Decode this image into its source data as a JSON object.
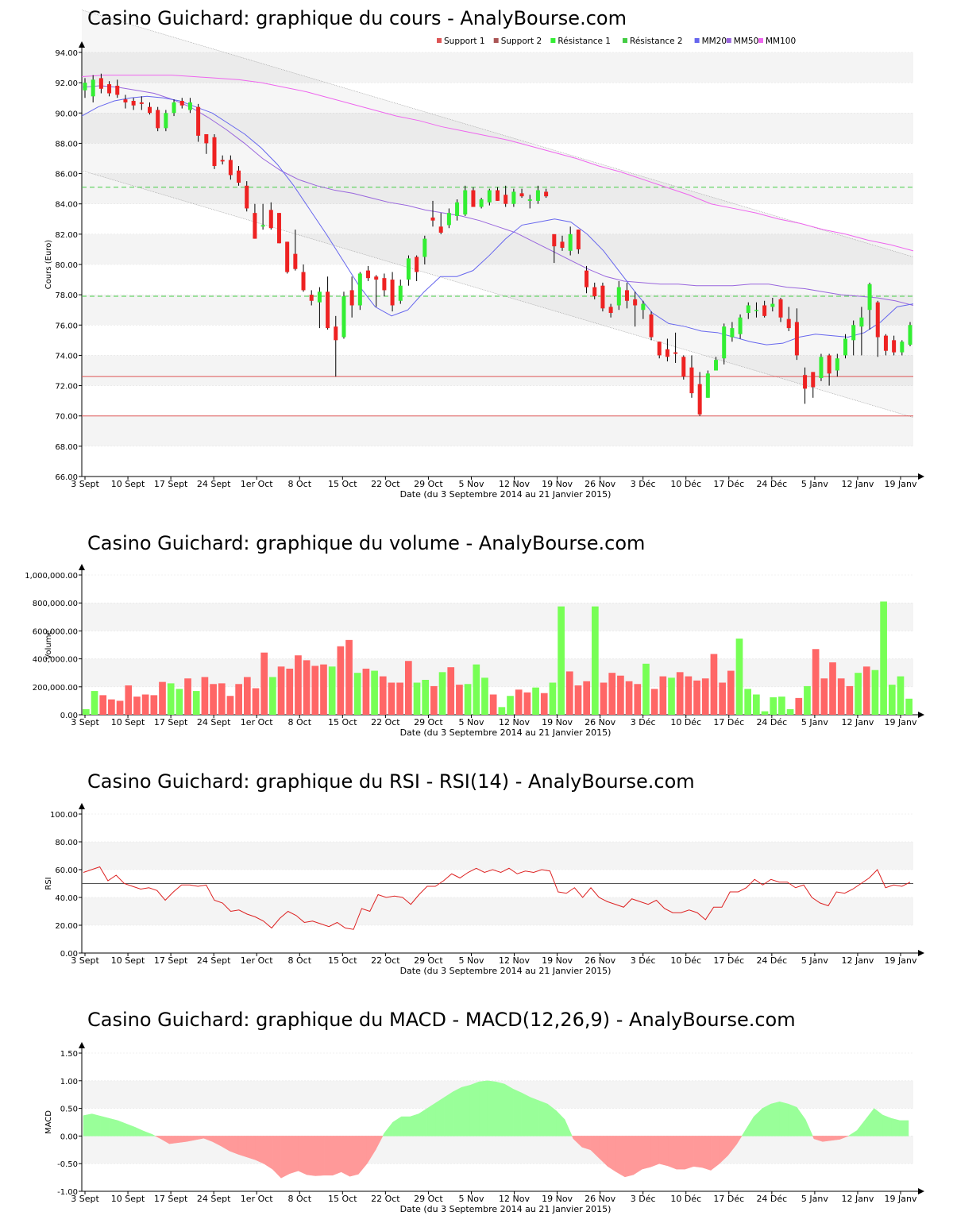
{
  "colors": {
    "up": "#33ee33",
    "down": "#ee2222",
    "up_volume": "#77ff55",
    "down_volume": "#ff6666",
    "mm20": "#6666ee",
    "mm50": "#9966dd",
    "mm100": "#ee66ee",
    "support": "#dd5555",
    "resistance": "#44cc44",
    "macd_pos": "#99ff99",
    "macd_neg": "#ff9999",
    "rsi": "#dd2222",
    "band": "#f4f4f4",
    "grid": "#bbbbbb"
  },
  "x_axis": {
    "labels": [
      "3 Sept",
      "10 Sept",
      "17 Sept",
      "24 Sept",
      "1er Oct",
      "8 Oct",
      "15 Oct",
      "22 Oct",
      "29 Oct",
      "5 Nov",
      "12 Nov",
      "19 Nov",
      "26 Nov",
      "3 Déc",
      "10 Déc",
      "17 Déc",
      "24 Déc",
      "5 Janv",
      "12 Janv",
      "19 Janv"
    ],
    "caption": "Date (du 3 Septembre 2014 au 21 Janvier 2015)"
  },
  "chart_data": [
    {
      "type": "candlestick",
      "title": "Casino Guichard: graphique du cours - AnalyBourse.com",
      "ylabel": "Cours (Euro)",
      "ylim": [
        66,
        94
      ],
      "yticks": [
        "66.00",
        "68.00",
        "70.00",
        "72.00",
        "74.00",
        "76.00",
        "78.00",
        "80.00",
        "82.00",
        "84.00",
        "86.00",
        "88.00",
        "90.00",
        "92.00",
        "94.00"
      ],
      "legend": [
        "Support 1",
        "Support 2",
        "Résistance 1",
        "Résistance 2",
        "MM20",
        "MM50",
        "MM100"
      ],
      "legend_placement": "top-right",
      "support": [
        72.6,
        70.0
      ],
      "resistance": [
        85.1,
        77.9
      ],
      "candles": [
        [
          91.5,
          92.3,
          91.0,
          92.0
        ],
        [
          91.1,
          92.5,
          90.7,
          92.2
        ],
        [
          92.3,
          92.6,
          91.3,
          91.6
        ],
        [
          91.9,
          92.1,
          91.1,
          91.3
        ],
        [
          91.8,
          92.2,
          91.0,
          91.2
        ],
        [
          90.9,
          91.2,
          90.3,
          90.7
        ],
        [
          90.8,
          91.0,
          90.2,
          90.5
        ],
        [
          90.7,
          91.1,
          90.2,
          90.6
        ],
        [
          90.4,
          90.7,
          89.9,
          90.0
        ],
        [
          90.2,
          90.4,
          88.8,
          89.0
        ],
        [
          89.0,
          90.2,
          88.8,
          90.0
        ],
        [
          90.0,
          90.9,
          89.8,
          90.7
        ],
        [
          90.8,
          91.0,
          90.3,
          90.5
        ],
        [
          90.2,
          91.0,
          90.0,
          90.7
        ],
        [
          90.4,
          90.6,
          88.1,
          88.5
        ],
        [
          88.6,
          88.6,
          87.3,
          88.0
        ],
        [
          88.4,
          88.6,
          86.3,
          86.5
        ],
        [
          86.9,
          87.2,
          86.6,
          86.8
        ],
        [
          86.9,
          87.2,
          85.6,
          85.9
        ],
        [
          86.2,
          86.5,
          85.2,
          85.4
        ],
        [
          85.2,
          85.5,
          83.5,
          83.7
        ],
        [
          83.4,
          84.0,
          81.7,
          81.7
        ],
        [
          82.5,
          84.0,
          82.3,
          82.6
        ],
        [
          83.6,
          84.1,
          82.3,
          82.4
        ],
        [
          83.4,
          83.4,
          81.4,
          81.4
        ],
        [
          81.5,
          81.5,
          79.4,
          79.5
        ],
        [
          80.7,
          82.3,
          79.6,
          79.7
        ],
        [
          79.5,
          80.0,
          78.2,
          78.3
        ],
        [
          78.0,
          78.3,
          77.3,
          77.6
        ],
        [
          77.5,
          78.5,
          75.8,
          78.2
        ],
        [
          78.2,
          79.2,
          75.7,
          75.8
        ],
        [
          75.9,
          76.6,
          72.6,
          75.0
        ],
        [
          75.2,
          78.2,
          75.1,
          77.9
        ],
        [
          78.3,
          79.2,
          76.5,
          77.3
        ],
        [
          77.3,
          79.5,
          77.0,
          79.4
        ],
        [
          79.6,
          79.9,
          78.9,
          79.1
        ],
        [
          79.2,
          79.3,
          77.2,
          79.0
        ],
        [
          79.1,
          79.4,
          77.9,
          78.3
        ],
        [
          79.0,
          79.5,
          76.9,
          77.3
        ],
        [
          77.6,
          79.0,
          77.4,
          78.6
        ],
        [
          79.0,
          80.6,
          78.6,
          80.4
        ],
        [
          80.5,
          80.6,
          78.9,
          79.5
        ],
        [
          80.5,
          81.9,
          80.0,
          81.7
        ],
        [
          83.1,
          84.2,
          82.5,
          82.9
        ],
        [
          82.5,
          83.4,
          82.0,
          82.1
        ],
        [
          82.6,
          83.7,
          82.4,
          83.4
        ],
        [
          83.2,
          84.3,
          82.9,
          84.1
        ],
        [
          83.3,
          85.2,
          83.2,
          84.9
        ],
        [
          84.9,
          85.1,
          83.8,
          83.8
        ],
        [
          83.8,
          84.4,
          83.7,
          84.3
        ],
        [
          84.1,
          85.0,
          83.9,
          84.9
        ],
        [
          84.9,
          85.1,
          84.2,
          84.2
        ],
        [
          84.6,
          85.2,
          83.8,
          84.0
        ],
        [
          84.0,
          85.0,
          83.8,
          84.8
        ],
        [
          84.7,
          85.0,
          84.4,
          84.5
        ],
        [
          84.2,
          84.6,
          83.7,
          84.3
        ],
        [
          84.2,
          85.2,
          84.0,
          84.9
        ],
        [
          84.8,
          85.0,
          84.4,
          84.5
        ],
        [
          82.0,
          82.0,
          80.1,
          81.2
        ],
        [
          81.5,
          81.9,
          80.9,
          81.1
        ],
        [
          80.9,
          82.5,
          80.6,
          82.0
        ],
        [
          82.3,
          82.3,
          80.7,
          81.0
        ],
        [
          79.6,
          79.9,
          78.1,
          78.5
        ],
        [
          78.5,
          78.8,
          77.7,
          77.9
        ],
        [
          78.6,
          78.8,
          76.9,
          77.1
        ],
        [
          77.2,
          77.4,
          76.5,
          76.8
        ],
        [
          77.3,
          78.9,
          77.0,
          78.5
        ],
        [
          78.3,
          78.8,
          77.1,
          77.6
        ],
        [
          77.7,
          78.2,
          75.9,
          77.3
        ],
        [
          77.0,
          77.6,
          76.4,
          77.4
        ],
        [
          76.7,
          76.9,
          75.0,
          75.2
        ],
        [
          74.9,
          74.9,
          73.8,
          74.0
        ],
        [
          74.4,
          75.1,
          73.6,
          73.9
        ],
        [
          74.2,
          75.5,
          73.5,
          74.1
        ],
        [
          73.9,
          74.0,
          72.4,
          72.6
        ],
        [
          73.2,
          74.0,
          71.2,
          71.5
        ],
        [
          72.1,
          72.9,
          70.0,
          70.1
        ],
        [
          71.2,
          73.0,
          71.2,
          72.8
        ],
        [
          73.0,
          73.9,
          73.0,
          73.7
        ],
        [
          73.8,
          76.1,
          73.4,
          75.9
        ],
        [
          75.2,
          76.2,
          74.9,
          75.8
        ],
        [
          75.4,
          76.7,
          75.1,
          76.5
        ],
        [
          76.8,
          77.5,
          76.4,
          77.3
        ],
        [
          77.0,
          77.5,
          76.5,
          77.0
        ],
        [
          77.3,
          77.6,
          76.5,
          76.6
        ],
        [
          77.2,
          77.8,
          76.9,
          77.4
        ],
        [
          77.7,
          77.8,
          76.2,
          76.5
        ],
        [
          76.4,
          77.2,
          75.6,
          75.8
        ],
        [
          76.2,
          77.1,
          73.7,
          74.0
        ],
        [
          72.7,
          73.2,
          70.8,
          71.8
        ],
        [
          72.9,
          72.9,
          71.2,
          71.9
        ],
        [
          72.5,
          74.1,
          72.3,
          73.9
        ],
        [
          74.0,
          74.1,
          72.0,
          72.8
        ],
        [
          73.0,
          74.1,
          72.6,
          73.8
        ],
        [
          74.0,
          75.4,
          73.8,
          75.1
        ],
        [
          75.0,
          76.3,
          74.0,
          76.0
        ],
        [
          75.9,
          77.2,
          74.0,
          76.5
        ],
        [
          77.0,
          78.8,
          75.7,
          78.7
        ],
        [
          77.5,
          77.6,
          73.9,
          75.2
        ],
        [
          75.3,
          75.4,
          74.0,
          74.3
        ],
        [
          75.0,
          75.3,
          74.0,
          74.2
        ],
        [
          74.2,
          75.0,
          74.0,
          74.9
        ],
        [
          74.7,
          76.2,
          74.6,
          76.0
        ]
      ],
      "mm20": [
        89.8,
        90.4,
        90.8,
        91.0,
        91.1,
        91.0,
        90.8,
        90.4,
        90.0,
        89.3,
        88.6,
        87.7,
        86.6,
        85.2,
        83.6,
        82.0,
        80.3,
        78.6,
        77.2,
        76.6,
        77.0,
        78.2,
        79.2,
        79.2,
        79.6,
        80.6,
        81.7,
        82.6,
        82.8,
        83.0,
        82.8,
        82.0,
        80.9,
        79.5,
        78.1,
        76.8,
        76.1,
        75.9,
        75.6,
        75.5,
        75.2,
        74.9,
        74.7,
        74.8,
        75.2,
        75.4,
        75.3,
        75.2,
        75.5,
        76.2,
        77.2,
        77.4
      ],
      "mm50": [
        91.7,
        91.8,
        91.7,
        91.5,
        91.3,
        90.9,
        90.4,
        89.7,
        88.9,
        88.0,
        87.0,
        86.2,
        85.6,
        85.2,
        84.9,
        84.7,
        84.4,
        84.1,
        83.9,
        83.6,
        83.4,
        83.2,
        82.9,
        82.5,
        82.1,
        81.5,
        80.9,
        80.3,
        79.7,
        79.2,
        78.9,
        78.8,
        78.7,
        78.7,
        78.6,
        78.6,
        78.6,
        78.7,
        78.7,
        78.5,
        78.4,
        78.2,
        78.0,
        77.9,
        77.8,
        77.6,
        77.3
      ],
      "mm100": [
        92.4,
        92.5,
        92.5,
        92.5,
        92.5,
        92.4,
        92.3,
        92.2,
        92.0,
        91.7,
        91.4,
        91.0,
        90.6,
        90.2,
        89.8,
        89.5,
        89.1,
        88.8,
        88.5,
        88.2,
        87.8,
        87.4,
        87.0,
        86.5,
        86.1,
        85.6,
        85.1,
        84.6,
        84.0,
        83.7,
        83.4,
        83.0,
        82.7,
        82.3,
        82.0,
        81.6,
        81.3,
        80.9
      ]
    },
    {
      "type": "bar",
      "title": "Casino Guichard: graphique du volume - AnalyBourse.com",
      "ylabel": "Volume",
      "ylim": [
        0,
        1000000
      ],
      "yticks": [
        "0.00",
        "200,000.00",
        "400,000.00",
        "600,000.00",
        "800,000.00",
        "1,000,000.00"
      ],
      "values": [
        40000,
        170000,
        140000,
        110000,
        100000,
        210000,
        130000,
        145000,
        140000,
        235000,
        225000,
        185000,
        260000,
        170000,
        270000,
        220000,
        225000,
        135000,
        220000,
        270000,
        190000,
        445000,
        270000,
        345000,
        330000,
        425000,
        390000,
        350000,
        360000,
        345000,
        490000,
        535000,
        300000,
        330000,
        315000,
        275000,
        230000,
        230000,
        385000,
        230000,
        250000,
        205000,
        305000,
        340000,
        215000,
        220000,
        360000,
        265000,
        145000,
        55000,
        135000,
        180000,
        160000,
        195000,
        155000,
        230000,
        775000,
        310000,
        210000,
        240000,
        775000,
        230000,
        300000,
        280000,
        240000,
        220000,
        365000,
        185000,
        275000,
        265000,
        305000,
        275000,
        245000,
        260000,
        435000,
        230000,
        315000,
        545000,
        185000,
        145000,
        25000,
        125000,
        130000,
        40000,
        120000,
        205000,
        470000,
        260000,
        375000,
        260000,
        205000,
        300000,
        345000,
        320000,
        810000,
        215000,
        275000,
        115000
      ]
    },
    {
      "type": "line",
      "title": "Casino Guichard: graphique du RSI - RSI(14) - AnalyBourse.com",
      "ylabel": "RSI",
      "ylim": [
        0,
        100
      ],
      "yticks": [
        "0.00",
        "20.00",
        "40.00",
        "60.00",
        "80.00",
        "100.00"
      ],
      "reference_line": 50,
      "values": [
        58,
        60,
        62,
        52,
        56,
        50,
        48,
        46,
        47,
        45,
        38,
        44,
        49,
        49,
        48,
        49,
        38,
        36,
        30,
        31,
        28,
        26,
        23,
        18,
        25,
        30,
        27,
        22,
        23,
        21,
        19,
        22,
        18,
        17,
        32,
        30,
        42,
        40,
        41,
        40,
        35,
        42,
        48,
        48,
        52,
        57,
        54,
        58,
        61,
        58,
        60,
        58,
        61,
        57,
        59,
        58,
        60,
        59,
        44,
        43,
        47,
        40,
        47,
        40,
        37,
        35,
        33,
        39,
        37,
        35,
        38,
        32,
        29,
        29,
        31,
        29,
        24,
        33,
        33,
        44,
        44,
        47,
        53,
        49,
        53,
        51,
        51,
        47,
        49,
        40,
        36,
        34,
        44,
        43,
        46,
        50,
        54,
        60,
        47,
        49,
        48,
        51
      ]
    },
    {
      "type": "area",
      "title": "Casino Guichard: graphique du MACD - MACD(12,26,9) - AnalyBourse.com",
      "ylabel": "MACD",
      "ylim": [
        -1.0,
        1.5
      ],
      "yticks": [
        "-1.00",
        "-0.50",
        "0.00",
        "0.50",
        "1.00",
        "1.50"
      ],
      "values": [
        0.37,
        0.4,
        0.36,
        0.32,
        0.28,
        0.22,
        0.16,
        0.09,
        0.03,
        -0.05,
        -0.14,
        -0.12,
        -0.1,
        -0.07,
        -0.04,
        -0.1,
        -0.18,
        -0.27,
        -0.33,
        -0.38,
        -0.43,
        -0.5,
        -0.6,
        -0.76,
        -0.68,
        -0.63,
        -0.7,
        -0.72,
        -0.71,
        -0.71,
        -0.65,
        -0.73,
        -0.69,
        -0.5,
        -0.25,
        0.05,
        0.25,
        0.35,
        0.35,
        0.4,
        0.5,
        0.6,
        0.7,
        0.8,
        0.88,
        0.92,
        0.98,
        1.0,
        0.98,
        0.94,
        0.85,
        0.78,
        0.7,
        0.64,
        0.58,
        0.46,
        0.3,
        -0.05,
        -0.2,
        -0.25,
        -0.4,
        -0.55,
        -0.65,
        -0.74,
        -0.7,
        -0.6,
        -0.56,
        -0.5,
        -0.54,
        -0.6,
        -0.6,
        -0.55,
        -0.57,
        -0.62,
        -0.5,
        -0.35,
        -0.15,
        0.1,
        0.35,
        0.5,
        0.58,
        0.62,
        0.58,
        0.52,
        0.3,
        -0.05,
        -0.1,
        -0.08,
        -0.06,
        0.0,
        0.1,
        0.3,
        0.5,
        0.38,
        0.32,
        0.28,
        0.28
      ]
    }
  ],
  "panels": [
    {
      "title": "Casino Guichard: graphique du cours - AnalyBourse.com"
    },
    {
      "title": "Casino Guichard: graphique du volume - AnalyBourse.com"
    },
    {
      "title": "Casino Guichard: graphique du RSI - RSI(14) - AnalyBourse.com"
    },
    {
      "title": "Casino Guichard: graphique du MACD - MACD(12,26,9) - AnalyBourse.com"
    }
  ]
}
